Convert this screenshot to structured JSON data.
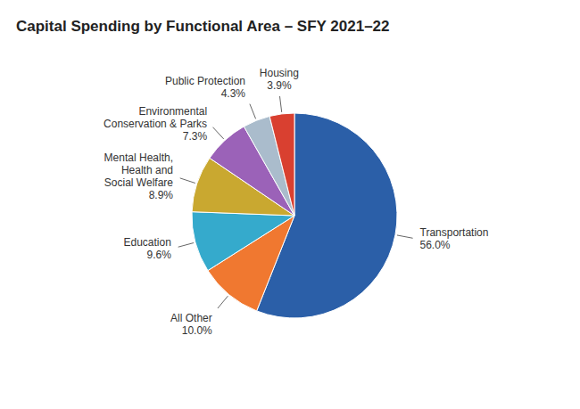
{
  "chart_data": {
    "type": "pie",
    "title": "Capital Spending by Functional Area – SFY 2021–22",
    "categories": [
      "Transportation",
      "All Other",
      "Education",
      "Mental Health,\nHealth and\nSocial Welfare",
      "Environmental\nConservation & Parks",
      "Public Protection",
      "Housing"
    ],
    "values": [
      56.0,
      10.0,
      9.6,
      8.9,
      7.3,
      4.3,
      3.9
    ],
    "value_labels": [
      "56.0%",
      "10.0%",
      "9.6%",
      "8.9%",
      "7.3%",
      "4.3%",
      "3.9%"
    ],
    "colors": [
      "#2B5FA8",
      "#F07830",
      "#35AACC",
      "#C9A830",
      "#9B62B8",
      "#AABCCC",
      "#D94030"
    ],
    "data_labels": true
  }
}
